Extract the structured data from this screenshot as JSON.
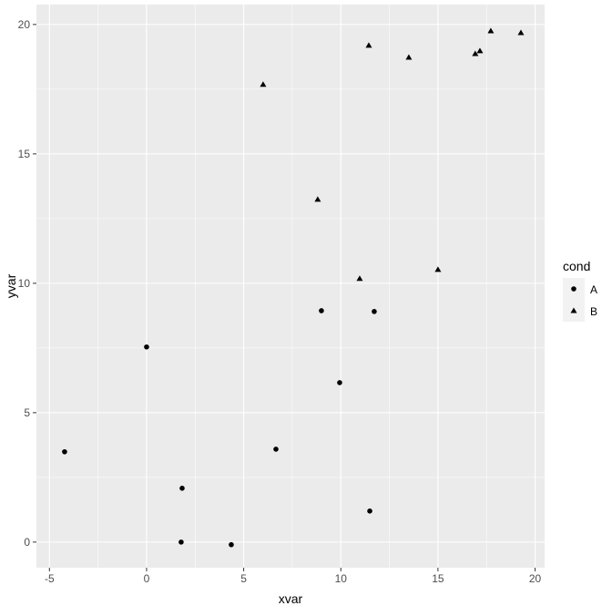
{
  "chart_data": {
    "type": "scatter",
    "xlabel": "xvar",
    "ylabel": "yvar",
    "xlim": [
      -5.67,
      20.49
    ],
    "ylim": [
      -0.99,
      20.77
    ],
    "xticks": [
      -5,
      0,
      5,
      10,
      15,
      20
    ],
    "yticks": [
      0,
      5,
      10,
      15,
      20
    ],
    "xtick_labels": [
      "-5",
      "0",
      "5",
      "10",
      "15",
      "20"
    ],
    "ytick_labels": [
      "0",
      "5",
      "10",
      "15",
      "20"
    ],
    "grid": true,
    "legend": {
      "title": "cond",
      "placement": "right"
    },
    "series": [
      {
        "name": "A",
        "shape": "circle",
        "color": "#000000",
        "points": [
          [
            -4.22,
            3.49
          ],
          [
            0.0,
            7.54
          ],
          [
            1.83,
            2.08
          ],
          [
            1.78,
            0.0
          ],
          [
            4.36,
            -0.1
          ],
          [
            6.66,
            3.59
          ],
          [
            9.0,
            8.94
          ],
          [
            9.94,
            6.16
          ],
          [
            11.72,
            8.91
          ],
          [
            11.49,
            1.2
          ]
        ]
      },
      {
        "name": "B",
        "shape": "triangle",
        "color": "#000000",
        "points": [
          [
            6.0,
            17.68
          ],
          [
            8.81,
            13.24
          ],
          [
            11.44,
            19.19
          ],
          [
            10.97,
            10.18
          ],
          [
            13.5,
            18.73
          ],
          [
            15.0,
            10.53
          ],
          [
            16.92,
            18.87
          ],
          [
            17.16,
            18.98
          ],
          [
            17.72,
            19.75
          ],
          [
            19.27,
            19.68
          ]
        ]
      }
    ]
  },
  "colors": {
    "panel": "#EBEBEB",
    "grid": "#FFFFFF",
    "axis_text": "#4D4D4D"
  }
}
